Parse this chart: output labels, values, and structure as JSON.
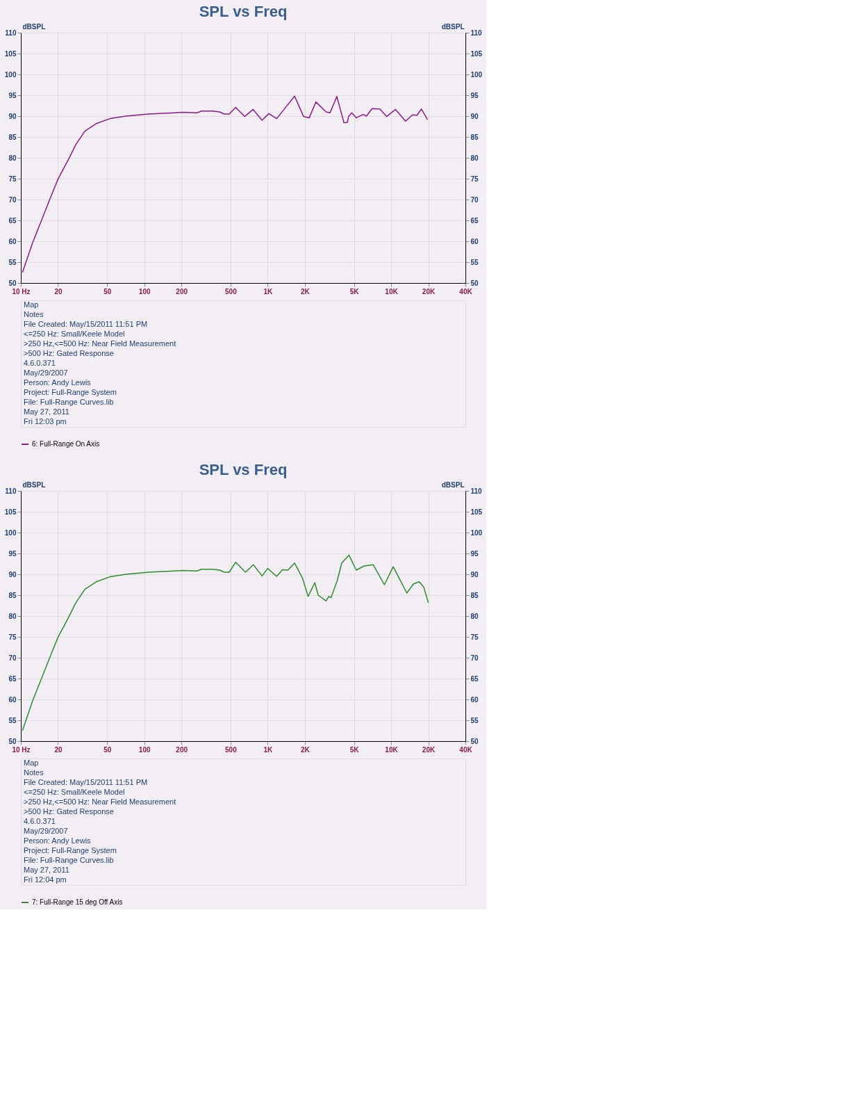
{
  "chart_data": [
    {
      "type": "line",
      "title": "SPL vs Freq",
      "ylabel": "dBSPL",
      "y2label": "dBSPL",
      "xlim": [
        10,
        40000
      ],
      "xticks": [
        {
          "value": 10,
          "label": "10 Hz"
        },
        20,
        50,
        100,
        200,
        500,
        {
          "value": 1000,
          "label": "1K"
        },
        {
          "value": 2000,
          "label": "2K"
        },
        {
          "value": 5000,
          "label": "5K"
        },
        {
          "value": 10000,
          "label": "10K"
        },
        {
          "value": 20000,
          "label": "20K"
        },
        {
          "value": 40000,
          "label": "40K"
        }
      ],
      "ylim": [
        50,
        110
      ],
      "yticks": [
        50,
        55,
        60,
        65,
        70,
        75,
        80,
        85,
        90,
        95,
        100,
        105,
        110
      ],
      "y2lim": [
        50,
        110
      ],
      "y2ticks": [
        50,
        55,
        60,
        65,
        70,
        75,
        80,
        85,
        90,
        95,
        100,
        105,
        110
      ],
      "log": "x",
      "grid": true,
      "legend": "bottom",
      "series": [
        {
          "name": "6: Full-Range On Axis",
          "color": "#8b1a8b",
          "x": [
            10.3,
            12.4,
            14.7,
            17.4,
            20,
            24.5,
            27.8,
            33,
            40.8,
            52.7,
            71,
            108,
            206,
            267,
            290,
            358,
            408,
            444,
            488,
            550,
            650,
            762,
            900,
            1021,
            1182,
            1398,
            1652,
            1953,
            2170,
            2460,
            2970,
            3200,
            3630,
            4150,
            4420,
            4520,
            4800,
            5220,
            5930,
            6310,
            7000,
            8100,
            9190,
            10850,
            13100,
            14900,
            16200,
            17600,
            19700
          ],
          "values": [
            52.5,
            59.5,
            65,
            70.5,
            74.9,
            79.8,
            83.1,
            86.4,
            88.2,
            89.4,
            90,
            90.5,
            90.9,
            90.8,
            91.2,
            91.2,
            91,
            90.5,
            90.5,
            92.1,
            89.9,
            91.6,
            89,
            90.6,
            89.4,
            92.1,
            94.8,
            89.9,
            89.6,
            93.4,
            91,
            90.8,
            94.7,
            88.4,
            88.5,
            89.9,
            90.8,
            89.6,
            90.4,
            90,
            91.8,
            91.7,
            89.9,
            91.6,
            88.8,
            90.3,
            90.2,
            91.7,
            89.2
          ]
        }
      ],
      "annotations": [
        "Map",
        "Notes",
        "File Created: May/15/2011 11:51 PM",
        "<=250 Hz: Small/Keele Model",
        ">250 Hz,<=500 Hz: Near Field Measurement",
        ">500 Hz: Gated Response",
        "4.6.0.371",
        "May/29/2007",
        "Person: Andy Lewis",
        "Project: Full-Range System",
        "File: Full-Range Curves.lib",
        "May 27, 2011",
        "Fri 12:03 pm"
      ]
    },
    {
      "type": "line",
      "title": "SPL vs Freq",
      "ylabel": "dBSPL",
      "y2label": "dBSPL",
      "xlim": [
        10,
        40000
      ],
      "xticks": [
        {
          "value": 10,
          "label": "10 Hz"
        },
        20,
        50,
        100,
        200,
        500,
        {
          "value": 1000,
          "label": "1K"
        },
        {
          "value": 2000,
          "label": "2K"
        },
        {
          "value": 5000,
          "label": "5K"
        },
        {
          "value": 10000,
          "label": "10K"
        },
        {
          "value": 20000,
          "label": "20K"
        },
        {
          "value": 40000,
          "label": "40K"
        }
      ],
      "ylim": [
        50,
        110
      ],
      "yticks": [
        50,
        55,
        60,
        65,
        70,
        75,
        80,
        85,
        90,
        95,
        100,
        105,
        110
      ],
      "y2lim": [
        50,
        110
      ],
      "y2ticks": [
        50,
        55,
        60,
        65,
        70,
        75,
        80,
        85,
        90,
        95,
        100,
        105,
        110
      ],
      "log": "x",
      "grid": true,
      "legend": "bottom",
      "series": [
        {
          "name": "7: Full-Range 15 deg Off Axis",
          "color": "#2e8b2e",
          "x": [
            10.3,
            12.4,
            14.7,
            17.4,
            20,
            24.5,
            27.8,
            33,
            40.8,
            52.7,
            71,
            108,
            206,
            267,
            290,
            358,
            408,
            444,
            488,
            550,
            660,
            766,
            900,
            1000,
            1182,
            1313,
            1458,
            1652,
            1912,
            2125,
            2408,
            2565,
            2970,
            3125,
            3260,
            3660,
            3980,
            4550,
            5220,
            6050,
            7150,
            8820,
            10400,
            13400,
            15200,
            16880,
            18390,
            20000
          ],
          "values": [
            52.5,
            59.5,
            65,
            70.5,
            74.9,
            79.8,
            83.1,
            86.4,
            88.2,
            89.4,
            90,
            90.5,
            90.9,
            90.8,
            91.2,
            91.2,
            91,
            90.5,
            90.5,
            92.9,
            90.5,
            92.3,
            89.6,
            91.4,
            89.5,
            91.1,
            91,
            92.7,
            89.1,
            84.7,
            88,
            85,
            83.6,
            84.7,
            84.4,
            88.5,
            92.7,
            94.6,
            91,
            92,
            92.3,
            87.5,
            91.8,
            85.5,
            87.7,
            88.2,
            86.9,
            83.2
          ]
        }
      ],
      "annotations": [
        "Map",
        "Notes",
        "File Created: May/15/2011 11:51 PM",
        "<=250 Hz: Small/Keele Model",
        ">250 Hz,<=500 Hz: Near Field Measurement",
        ">500 Hz: Gated Response",
        "4.6.0.371",
        "May/29/2007",
        "Person: Andy Lewis",
        "Project: Full-Range System",
        "File: Full-Range Curves.lib",
        "May 27, 2011",
        "Fri 12:04 pm"
      ]
    }
  ]
}
